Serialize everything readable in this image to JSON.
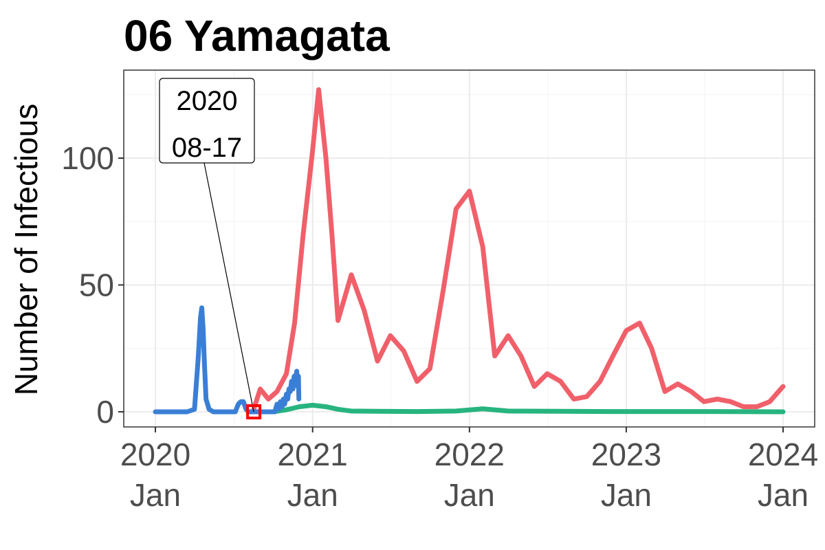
{
  "chart_data": {
    "type": "line",
    "title": "06 Yamagata",
    "xlabel": "",
    "ylabel": "Number of Infectious",
    "xlim": [
      "2020-01-01",
      "2024-01-01"
    ],
    "ylim": [
      0,
      130
    ],
    "grid": true,
    "legend": "none",
    "x_ticks": [
      {
        "date": "2020-01-01",
        "line1": "2020",
        "line2": "Jan"
      },
      {
        "date": "2021-01-01",
        "line1": "2021",
        "line2": "Jan"
      },
      {
        "date": "2022-01-01",
        "line1": "2022",
        "line2": "Jan"
      },
      {
        "date": "2023-01-01",
        "line1": "2023",
        "line2": "Jan"
      },
      {
        "date": "2024-01-01",
        "line1": "2024",
        "line2": "Jan"
      }
    ],
    "y_ticks": [
      0,
      50,
      100
    ],
    "series": [
      {
        "color": "#3a7fd5",
        "x": [
          "2020-01-01",
          "2020-03-15",
          "2020-04-01",
          "2020-04-10",
          "2020-04-15",
          "2020-04-18",
          "2020-04-21",
          "2020-04-24",
          "2020-04-28",
          "2020-05-05",
          "2020-05-15",
          "2020-06-01",
          "2020-07-05",
          "2020-07-12",
          "2020-07-18",
          "2020-07-24",
          "2020-07-30",
          "2020-08-05",
          "2020-08-17",
          "2020-09-15",
          "2020-10-05",
          "2020-10-10",
          "2020-10-14",
          "2020-10-18",
          "2020-10-22",
          "2020-10-25",
          "2020-10-28",
          "2020-11-01",
          "2020-11-04",
          "2020-11-07",
          "2020-11-10",
          "2020-11-13",
          "2020-11-16",
          "2020-11-19",
          "2020-11-22",
          "2020-11-25",
          "2020-11-27",
          "2020-11-29",
          "2020-11-30"
        ],
        "y": [
          0,
          0,
          1,
          22,
          37,
          41,
          33,
          20,
          5,
          1,
          0,
          0,
          0,
          3,
          4,
          4,
          1,
          0,
          0,
          0,
          0,
          3,
          1,
          4,
          2,
          5,
          3,
          7,
          5,
          9,
          8,
          12,
          9,
          14,
          13,
          16,
          10,
          14,
          5
        ]
      },
      {
        "color": "#f0606a",
        "x": [
          "2020-08-17",
          "2020-09-01",
          "2020-09-20",
          "2020-10-10",
          "2020-11-01",
          "2020-11-20",
          "2020-12-10",
          "2021-01-01",
          "2021-01-15",
          "2021-02-01",
          "2021-02-15",
          "2021-03-01",
          "2021-04-01",
          "2021-05-01",
          "2021-06-01",
          "2021-07-01",
          "2021-08-01",
          "2021-09-01",
          "2021-10-01",
          "2021-11-01",
          "2021-12-01",
          "2022-01-01",
          "2022-02-01",
          "2022-03-01",
          "2022-04-01",
          "2022-05-01",
          "2022-06-01",
          "2022-07-01",
          "2022-08-01",
          "2022-09-01",
          "2022-10-01",
          "2022-11-01",
          "2022-12-01",
          "2023-01-01",
          "2023-02-01",
          "2023-03-01",
          "2023-04-01",
          "2023-05-01",
          "2023-06-01",
          "2023-07-01",
          "2023-08-01",
          "2023-09-01",
          "2023-10-01",
          "2023-11-01",
          "2023-12-01",
          "2024-01-01"
        ],
        "y": [
          1,
          9,
          5,
          8,
          15,
          35,
          70,
          103,
          127,
          100,
          70,
          36,
          54,
          40,
          20,
          30,
          24,
          12,
          17,
          48,
          80,
          87,
          65,
          22,
          30,
          22,
          10,
          15,
          12,
          5,
          6,
          12,
          22,
          32,
          35,
          25,
          8,
          11,
          8,
          4,
          5,
          4,
          2,
          2,
          4,
          10
        ]
      },
      {
        "color": "#27b47e",
        "x": [
          "2020-08-17",
          "2020-10-01",
          "2020-11-01",
          "2020-12-01",
          "2021-01-01",
          "2021-02-01",
          "2021-03-01",
          "2021-04-01",
          "2021-06-01",
          "2021-09-01",
          "2021-12-01",
          "2022-02-01",
          "2022-04-01",
          "2022-08-01",
          "2022-12-01",
          "2023-04-01",
          "2023-08-01",
          "2024-01-01"
        ],
        "y": [
          0,
          0,
          0.8,
          2,
          2.6,
          2,
          1,
          0.3,
          0.2,
          0.1,
          0.3,
          1.2,
          0.3,
          0.2,
          0.1,
          0.1,
          0.1,
          0
        ]
      }
    ],
    "annotation": {
      "date": "2020-08-17",
      "value": 0,
      "line1": "2020",
      "line2": "08-17",
      "marker_color": "#ff0000"
    }
  }
}
